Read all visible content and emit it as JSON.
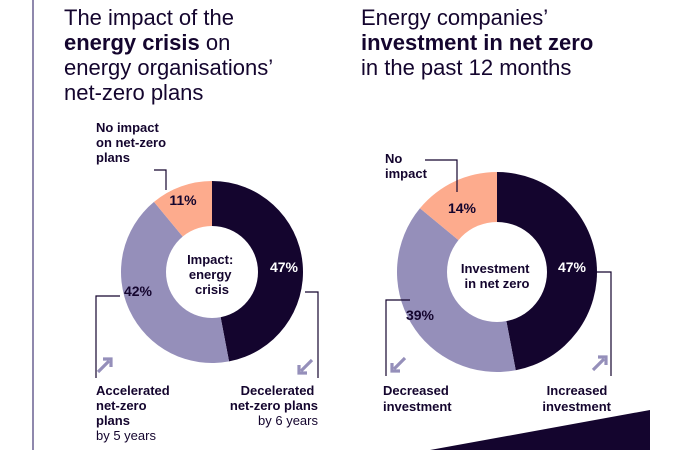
{
  "colors": {
    "dark": "#14052e",
    "lavender": "#958fba",
    "peach": "#fdab8d",
    "rule": "#8f88ad"
  },
  "titles": [
    {
      "pre": "The impact of the",
      "bold": "energy crisis",
      "post": " on",
      "rest1": "energy organisations’",
      "rest2": "net-zero plans"
    },
    {
      "pre": "Energy companies’",
      "bold": "investment in net zero",
      "post": "",
      "rest1": "in the past 12 months",
      "rest2": ""
    }
  ],
  "chart_data": [
    {
      "type": "pie",
      "title": "The impact of the energy crisis on energy organisations’ net-zero plans",
      "center_label": [
        "Impact:",
        "energy",
        "crisis"
      ],
      "slices": [
        {
          "label": "Decelerated net-zero plans",
          "value": 47,
          "display": "47%",
          "color": "#14052e",
          "note": "by 6 years"
        },
        {
          "label": "Accelerated net-zero plans",
          "value": 42,
          "display": "42%",
          "color": "#958fba",
          "note": "by 5 years"
        },
        {
          "label": "No impact on net-zero plans",
          "value": 11,
          "display": "11%",
          "color": "#fdab8d",
          "note": ""
        }
      ],
      "callouts": {
        "no_impact": [
          "No impact",
          "on net-zero",
          "plans"
        ],
        "accelerated": [
          "Accelerated",
          "net-zero",
          "plans"
        ],
        "accelerated_note": "by 5 years",
        "decelerated": [
          "Decelerated",
          "net-zero plans"
        ],
        "decelerated_note": "by 6 years"
      }
    },
    {
      "type": "pie",
      "title": "Energy companies’ investment in net zero in the past 12 months",
      "center_label": [
        "Investment",
        "in net zero"
      ],
      "slices": [
        {
          "label": "Increased investment",
          "value": 47,
          "display": "47%",
          "color": "#14052e"
        },
        {
          "label": "Decreased investment",
          "value": 39,
          "display": "39%",
          "color": "#958fba"
        },
        {
          "label": "No impact",
          "value": 14,
          "display": "14%",
          "color": "#fdab8d"
        }
      ],
      "callouts": {
        "no_impact": [
          "No",
          "impact"
        ],
        "decreased": [
          "Decreased",
          "investment"
        ],
        "increased": [
          "Increased",
          "investment"
        ]
      }
    }
  ]
}
